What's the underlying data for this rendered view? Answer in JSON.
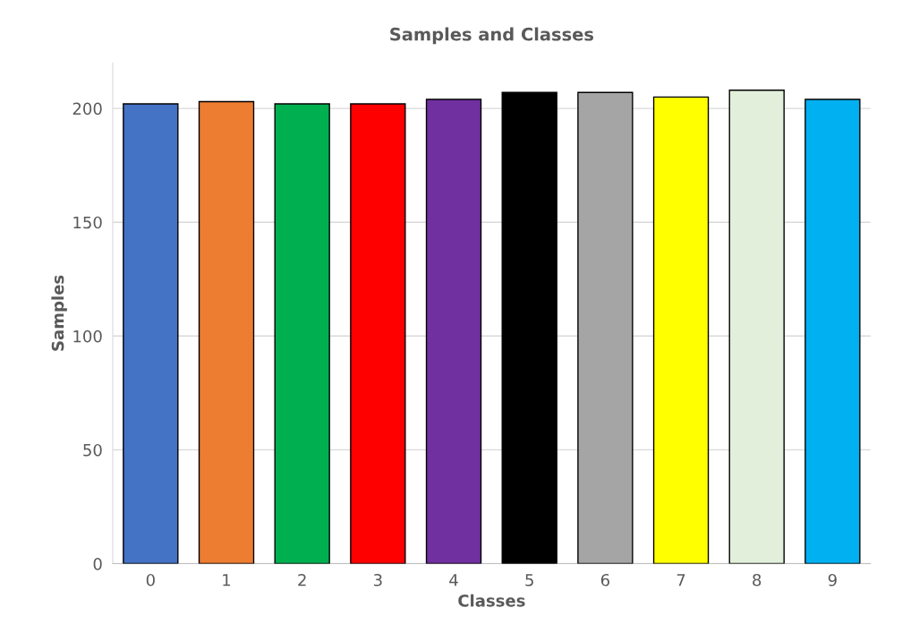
{
  "chart_data": {
    "type": "bar",
    "title": "Samples and Classes",
    "xlabel": "Classes",
    "ylabel": "Samples",
    "categories": [
      "0",
      "1",
      "2",
      "3",
      "4",
      "5",
      "6",
      "7",
      "8",
      "9"
    ],
    "values": [
      202,
      203,
      202,
      202,
      204,
      207,
      207,
      205,
      208,
      204
    ],
    "colors": [
      "#4472c4",
      "#ed7d31",
      "#00b050",
      "#ff0000",
      "#7030a0",
      "#000000",
      "#a5a5a5",
      "#ffff00",
      "#e2efda",
      "#00b0f0"
    ],
    "ylim": [
      0,
      220
    ],
    "yticks": [
      0,
      50,
      100,
      150,
      200
    ],
    "grid": "y",
    "legend": false
  }
}
